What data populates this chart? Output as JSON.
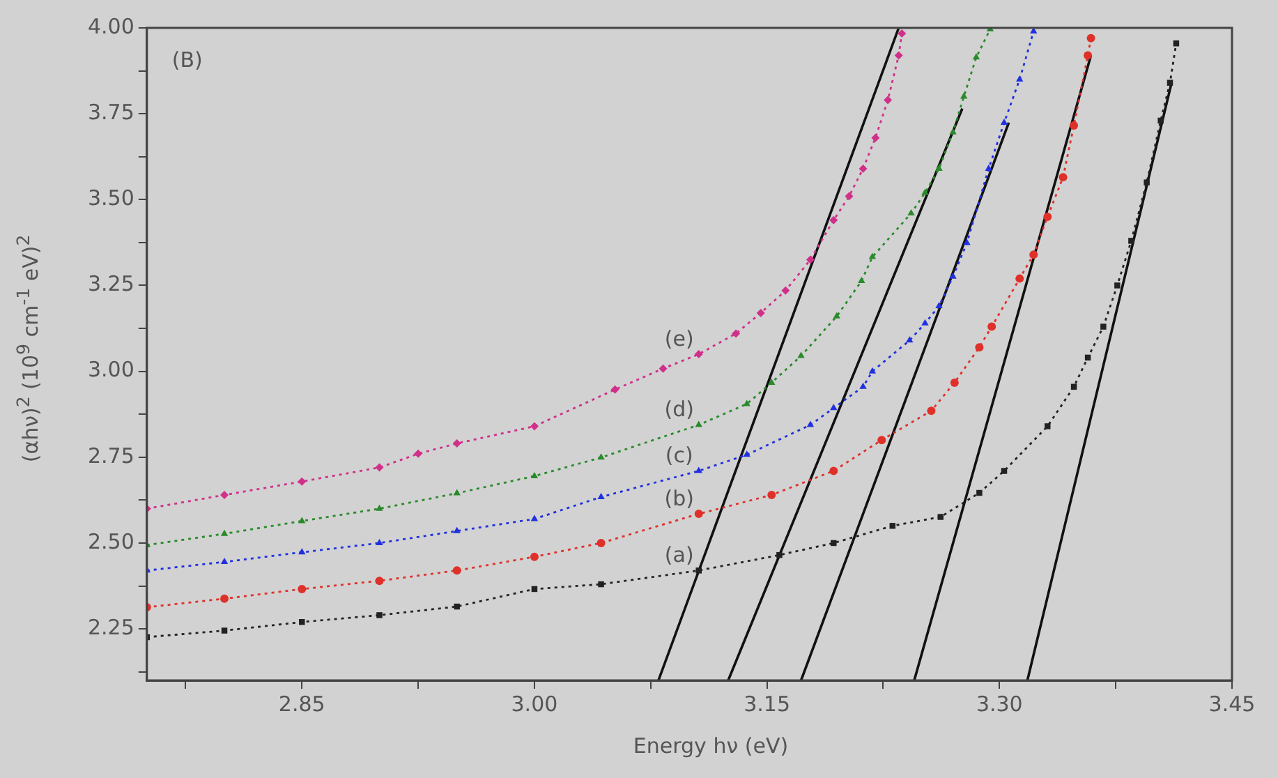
{
  "chart_data": {
    "type": "line",
    "xlabel": "Energy hν (eV)",
    "ylabel": "(αhν)$^{2}$ (10$^{9}$ cm$^{-1}$ eV)$^{2}$",
    "annotations": [
      "(B)"
    ],
    "xlim": [
      2.75,
      3.45
    ],
    "ylim": [
      2.1,
      4.0
    ],
    "xticks": [
      {
        "value": 2.775,
        "label": null
      },
      {
        "value": 2.85,
        "label": "2.85"
      },
      {
        "value": 2.925,
        "label": null
      },
      {
        "value": 3.0,
        "label": "3.00"
      },
      {
        "value": 3.075,
        "label": null
      },
      {
        "value": 3.15,
        "label": "3.15"
      },
      {
        "value": 3.225,
        "label": null
      },
      {
        "value": 3.3,
        "label": "3.30"
      },
      {
        "value": 3.375,
        "label": null
      },
      {
        "value": 3.45,
        "label": "3.45"
      }
    ],
    "yticks": [
      {
        "value": 2.125,
        "label": null
      },
      {
        "value": 2.25,
        "label": "2.25"
      },
      {
        "value": 2.375,
        "label": null
      },
      {
        "value": 2.5,
        "label": "2.50"
      },
      {
        "value": 2.625,
        "label": null
      },
      {
        "value": 2.75,
        "label": "2.75"
      },
      {
        "value": 2.875,
        "label": null
      },
      {
        "value": 3.0,
        "label": "3.00"
      },
      {
        "value": 3.125,
        "label": null
      },
      {
        "value": 3.25,
        "label": "3.25"
      },
      {
        "value": 3.375,
        "label": null
      },
      {
        "value": 3.5,
        "label": "3.50"
      },
      {
        "value": 3.625,
        "label": null
      },
      {
        "value": 3.75,
        "label": "3.75"
      },
      {
        "value": 3.875,
        "label": null
      },
      {
        "value": 4.0,
        "label": "4.00"
      }
    ],
    "grid": false,
    "legend": false,
    "series": [
      {
        "name": "(a)",
        "color": "#222222",
        "marker": "square",
        "line_style": "dotted",
        "x": [
          2.75,
          2.8,
          2.85,
          2.9,
          2.95,
          3.0,
          3.043,
          3.106,
          3.158,
          3.193,
          3.231,
          3.262,
          3.287,
          3.303,
          3.331,
          3.348,
          3.357,
          3.367,
          3.376,
          3.385,
          3.395,
          3.404,
          3.41,
          3.414
        ],
        "values": [
          2.226,
          2.245,
          2.27,
          2.29,
          2.315,
          2.366,
          2.38,
          2.42,
          2.465,
          2.5,
          2.55,
          2.576,
          2.646,
          2.71,
          2.84,
          2.955,
          3.04,
          3.13,
          3.25,
          3.38,
          3.55,
          3.73,
          3.84,
          3.955
        ]
      },
      {
        "name": "(b)",
        "color": "#e0302a",
        "marker": "circle",
        "line_style": "dotted",
        "x": [
          2.75,
          2.8,
          2.85,
          2.9,
          2.95,
          3.0,
          3.043,
          3.106,
          3.153,
          3.193,
          3.224,
          3.256,
          3.271,
          3.287,
          3.295,
          3.313,
          3.322,
          3.331,
          3.341,
          3.348,
          3.357,
          3.359
        ],
        "values": [
          2.313,
          2.338,
          2.366,
          2.39,
          2.42,
          2.46,
          2.5,
          2.585,
          2.64,
          2.71,
          2.8,
          2.885,
          2.967,
          3.07,
          3.13,
          3.27,
          3.34,
          3.45,
          3.565,
          3.716,
          3.92,
          3.97
        ]
      },
      {
        "name": "(c)",
        "color": "#2030e0",
        "marker": "triangle",
        "line_style": "dotted",
        "x": [
          2.75,
          2.8,
          2.85,
          2.9,
          2.95,
          3.0,
          3.043,
          3.106,
          3.137,
          3.178,
          3.193,
          3.212,
          3.218,
          3.242,
          3.252,
          3.261,
          3.27,
          3.279,
          3.293,
          3.303,
          3.313,
          3.322
        ],
        "values": [
          2.42,
          2.445,
          2.473,
          2.5,
          2.535,
          2.57,
          2.634,
          2.71,
          2.757,
          2.844,
          2.893,
          2.955,
          3.0,
          3.09,
          3.14,
          3.19,
          3.276,
          3.374,
          3.59,
          3.724,
          3.85,
          3.99
        ]
      },
      {
        "name": "(d)",
        "color": "#2a8a2a",
        "marker": "triangle",
        "line_style": "dotted",
        "x": [
          2.75,
          2.8,
          2.85,
          2.9,
          2.95,
          3.0,
          3.043,
          3.106,
          3.137,
          3.153,
          3.172,
          3.195,
          3.211,
          3.218,
          3.243,
          3.252,
          3.261,
          3.27,
          3.277,
          3.285,
          3.294
        ],
        "values": [
          2.494,
          2.527,
          2.564,
          2.6,
          2.645,
          2.695,
          2.749,
          2.844,
          2.905,
          2.967,
          3.045,
          3.16,
          3.263,
          3.333,
          3.46,
          3.52,
          3.59,
          3.696,
          3.8,
          3.914,
          3.996
        ]
      },
      {
        "name": "(e)",
        "color": "#d0308a",
        "marker": "diamond",
        "line_style": "dotted",
        "x": [
          2.75,
          2.8,
          2.85,
          2.9,
          2.925,
          2.95,
          3.0,
          3.052,
          3.083,
          3.106,
          3.13,
          3.146,
          3.162,
          3.178,
          3.193,
          3.203,
          3.212,
          3.22,
          3.228,
          3.235,
          3.237
        ],
        "values": [
          2.6,
          2.64,
          2.679,
          2.72,
          2.76,
          2.79,
          2.84,
          2.947,
          3.008,
          3.05,
          3.11,
          3.17,
          3.235,
          3.325,
          3.44,
          3.51,
          3.59,
          3.68,
          3.79,
          3.92,
          3.984
        ]
      },
      {
        "type": "line",
        "color": "#111111",
        "marker": "none",
        "line_style": "solid",
        "x": [
          3.318,
          3.411
        ],
        "values": [
          2.1,
          3.84
        ]
      },
      {
        "type": "line",
        "color": "#111111",
        "marker": "none",
        "line_style": "solid",
        "x": [
          3.245,
          3.359
        ],
        "values": [
          2.1,
          3.92
        ]
      },
      {
        "type": "line",
        "color": "#111111",
        "marker": "none",
        "line_style": "solid",
        "x": [
          3.172,
          3.306
        ],
        "values": [
          2.1,
          3.724
        ]
      },
      {
        "type": "line",
        "color": "#111111",
        "marker": "none",
        "line_style": "solid",
        "x": [
          3.125,
          3.276
        ],
        "values": [
          2.1,
          3.765
        ]
      },
      {
        "type": "line",
        "color": "#111111",
        "marker": "none",
        "line_style": "solid",
        "x": [
          3.08,
          3.235
        ],
        "values": [
          2.1,
          4.0
        ]
      }
    ]
  }
}
